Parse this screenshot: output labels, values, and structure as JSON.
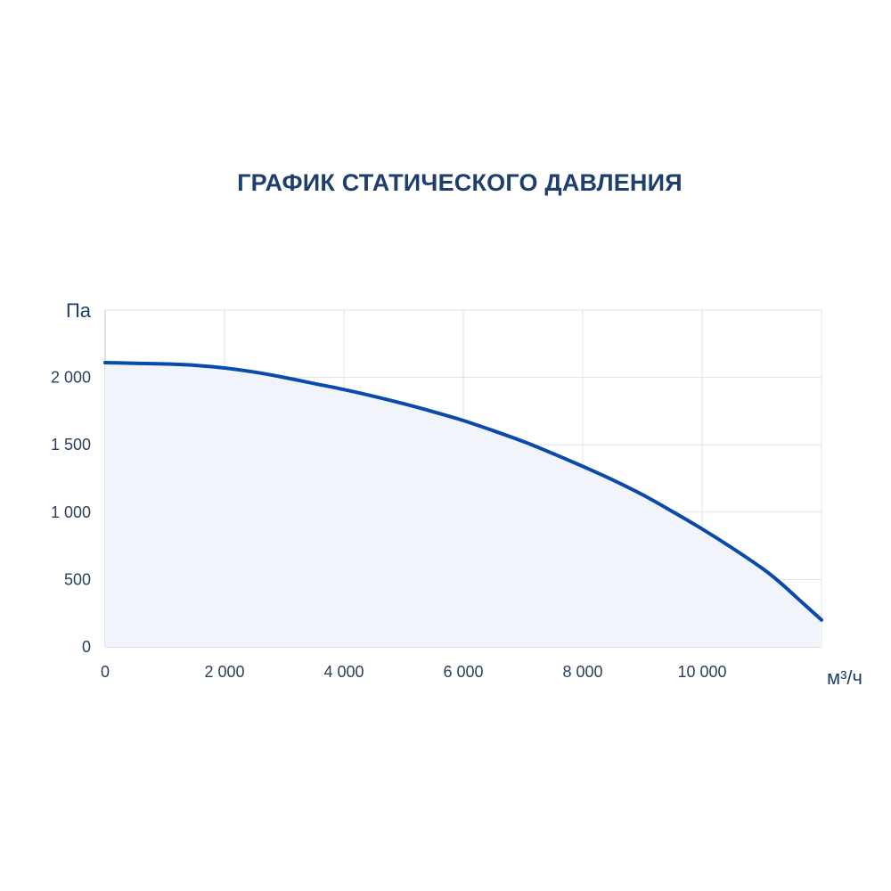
{
  "chart_data": {
    "type": "area",
    "title": "ГРАФИК СТАТИЧЕСКОГО ДАВЛЕНИЯ",
    "xlabel": "м³/ч",
    "ylabel": "Па",
    "xlim": [
      0,
      12000
    ],
    "ylim": [
      0,
      2500
    ],
    "grid": true,
    "x_ticks": [
      0,
      2000,
      4000,
      6000,
      8000,
      10000
    ],
    "x_tick_labels": [
      "0",
      "2 000",
      "4 000",
      "6 000",
      "8 000",
      "10 000"
    ],
    "y_ticks": [
      0,
      500,
      1000,
      1500,
      2000
    ],
    "y_tick_labels": [
      "0",
      "500",
      "1 000",
      "1 500",
      "2 000"
    ],
    "series": [
      {
        "x": [
          0,
          500,
          1000,
          1500,
          2000,
          2500,
          3000,
          3500,
          4000,
          4500,
          5000,
          5500,
          6000,
          6500,
          7000,
          7500,
          8000,
          8500,
          9000,
          9500,
          10000,
          10500,
          11000,
          11300,
          11600,
          12000
        ],
        "y": [
          2110,
          2105,
          2100,
          2090,
          2070,
          2040,
          2000,
          1955,
          1910,
          1860,
          1805,
          1745,
          1680,
          1605,
          1525,
          1435,
          1340,
          1240,
          1130,
          1005,
          875,
          735,
          585,
          480,
          360,
          200
        ]
      }
    ],
    "colors": {
      "line": "#0a4aab",
      "fill": "#f1f5fb",
      "grid": "#dde2ea",
      "title": "#1e3f6e",
      "tick": "#2b3f5c"
    }
  }
}
